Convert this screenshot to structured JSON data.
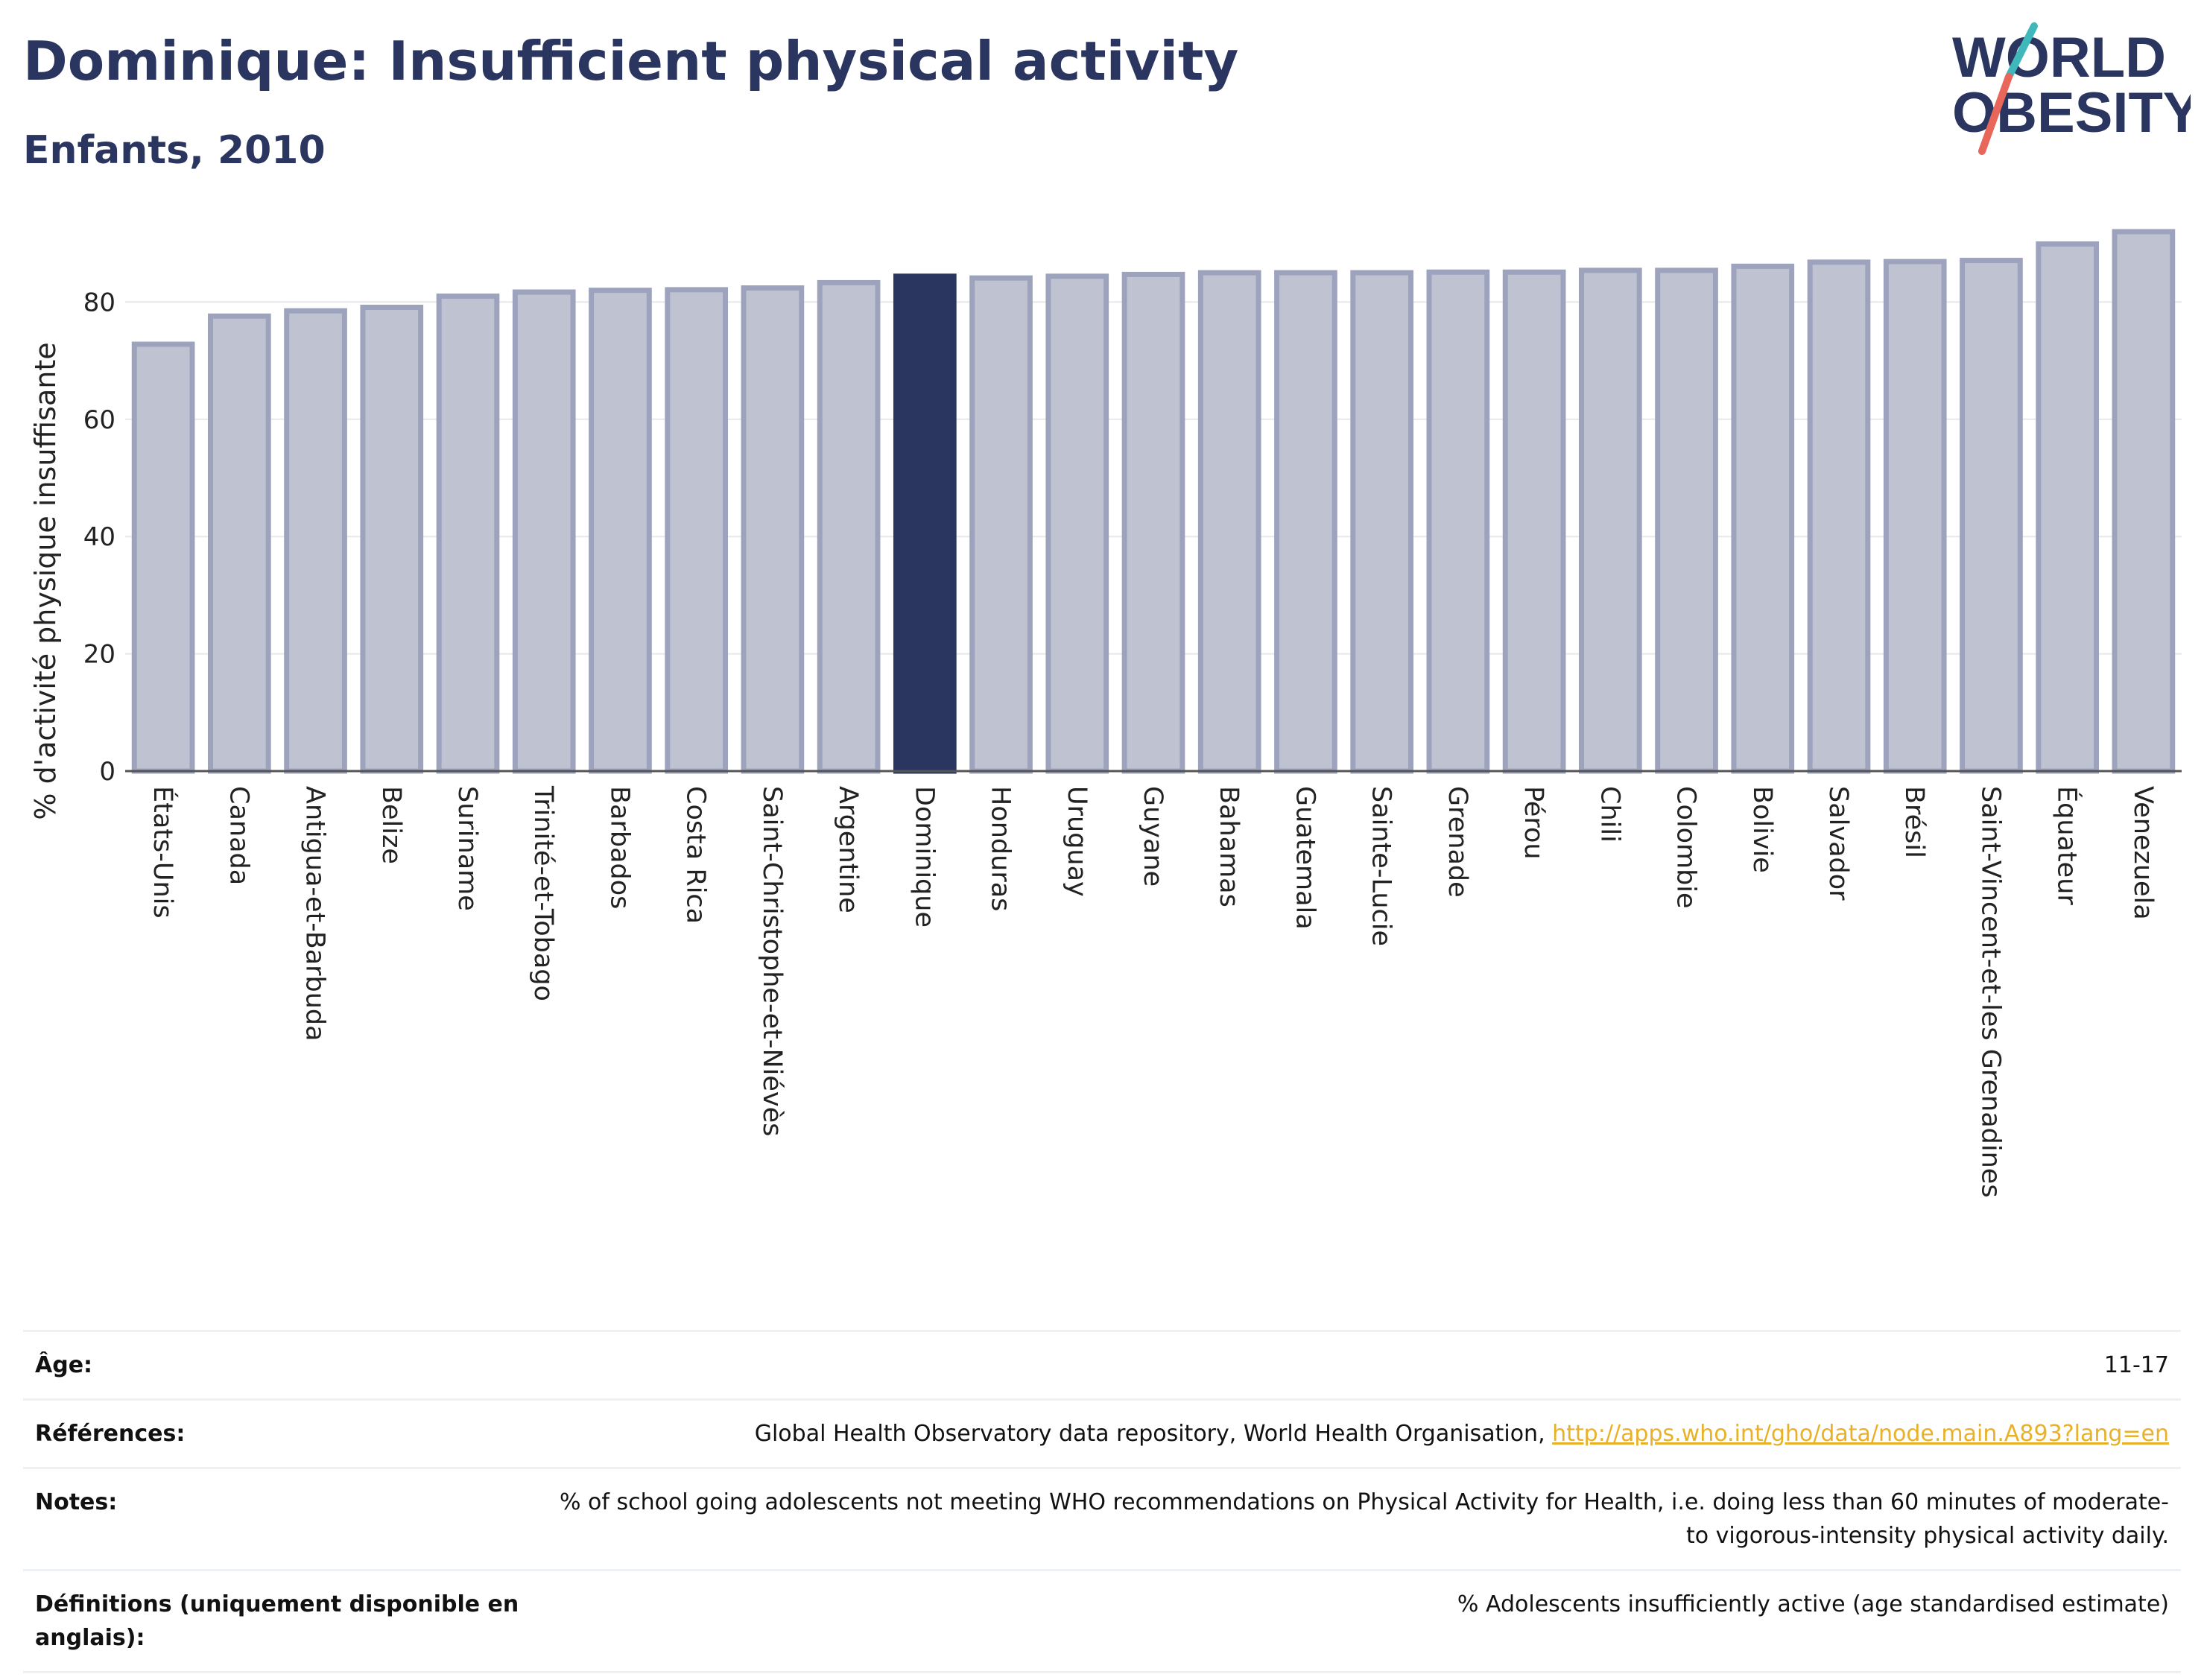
{
  "header": {
    "title": "Dominique: Insufficient physical activity",
    "subtitle": "Enfants, 2010"
  },
  "logo": {
    "line1": "WORLD",
    "line2": "OBESITY",
    "colors": {
      "text": "#2a3560",
      "accent_teal": "#3fb8bc",
      "accent_coral": "#e8675a"
    }
  },
  "colors": {
    "bar_fill": "#bfc3d1",
    "bar_stroke": "#9ea3bd",
    "highlight": "#2a3560",
    "grid": "#e8e8ec"
  },
  "chart_data": {
    "type": "bar",
    "ylabel": "% d'activité physique insuffisante",
    "xlabel": "",
    "ylim": [
      0,
      95
    ],
    "yticks": [
      0,
      20,
      40,
      60,
      80
    ],
    "grid": true,
    "highlight": "Dominique",
    "categories": [
      "États-Unis",
      "Canada",
      "Antigua-et-Barbuda",
      "Belize",
      "Suriname",
      "Trinité-et-Tobago",
      "Barbados",
      "Costa Rica",
      "Saint-Christophe-et-Niévès",
      "Argentine",
      "Dominique",
      "Honduras",
      "Uruguay",
      "Guyane",
      "Bahamas",
      "Guatemala",
      "Sainte-Lucie",
      "Grenade",
      "Pérou",
      "Chili",
      "Colombie",
      "Bolivie",
      "Salvador",
      "Brésil",
      "Saint-Vincent-et-les Grenadines",
      "Équateur",
      "Venezuela"
    ],
    "values": [
      72.8,
      77.6,
      78.5,
      79.1,
      81.0,
      81.7,
      82.0,
      82.1,
      82.4,
      83.3,
      84.4,
      84.1,
      84.4,
      84.7,
      85.0,
      85.0,
      85.0,
      85.1,
      85.1,
      85.4,
      85.4,
      86.1,
      86.8,
      86.9,
      87.1,
      89.9,
      92.0
    ]
  },
  "info": {
    "age_label": "Âge:",
    "age_value": "11-17",
    "refs_label": "Références:",
    "refs_text": "Global Health Observatory data repository, World Health Organisation, ",
    "refs_link": "http://apps.who.int/gho/data/node.main.A893?lang=en",
    "notes_label": "Notes:",
    "notes_value": "% of school going adolescents not meeting WHO recommendations on Physical Activity for Health, i.e. doing less than 60 minutes of moderate- to vigorous-intensity physical activity daily.",
    "defs_label": "Définitions (uniquement disponible en anglais):",
    "defs_value": "% Adolescents insufficiently active (age standardised estimate)"
  }
}
